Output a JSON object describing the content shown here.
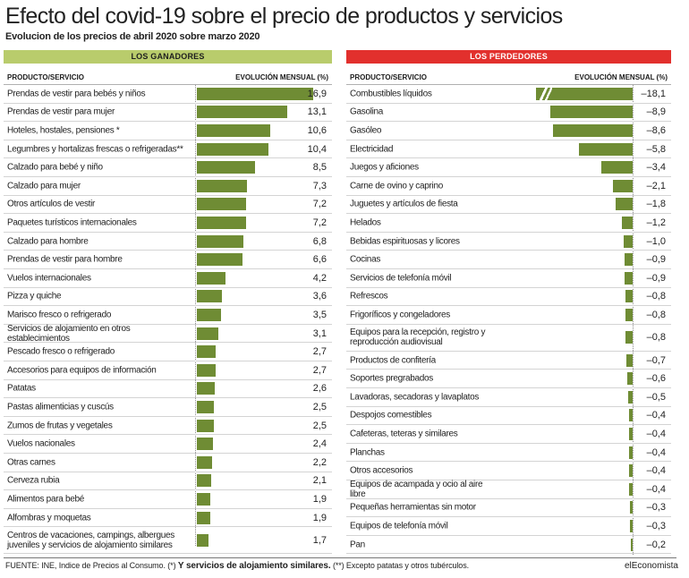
{
  "title": "Efecto del covid-19 sobre el precio de productos y servicios",
  "subtitle": "Evolucion de los precios de abril 2020 sobre marzo 2020",
  "footer": {
    "source": "FUENTE: INE, Indice de Precios al Consumo. (*)",
    "bold_note": "Y servicios de alojamiento similares.",
    "note2": "(**) Excepto patatas y otros tubérculos.",
    "brand": "elEconomista"
  },
  "colors": {
    "win_banner": "#b9cc6c",
    "lose_banner": "#e2302d",
    "bar": "#6f8c34"
  },
  "chart_data": [
    {
      "type": "bar",
      "title": "LOS GANADORES",
      "xlabel": "PRODUCTO/SERVICIO",
      "ylabel": "EVOLUCIÓN MENSUAL (%)",
      "categories": [
        "Prendas de vestir para bebés y niños",
        "Prendas de vestir para mujer",
        "Hoteles, hostales, pensiones *",
        "Legumbres y hortalizas frescas o refrigeradas**",
        "Calzado para bebé y niño",
        "Calzado para mujer",
        "Otros artículos de vestir",
        "Paquetes turísticos internacionales",
        "Calzado para hombre",
        "Prendas de vestir para hombre",
        "Vuelos internacionales",
        "Pizza y quiche",
        "Marisco fresco o refrigerado",
        "Servicios de alojamiento en otros establecimientos",
        "Pescado fresco o refrigerado",
        "Accesorios para equipos de información",
        "Patatas",
        "Pastas alimenticias y cuscús",
        "Zumos de frutas y vegetales",
        "Vuelos nacionales",
        "Otras carnes",
        "Cerveza rubia",
        "Alimentos para bebé",
        "Alfombras y moquetas",
        "Centros de vacaciones, campings, albergues juveniles y servicios de alojamiento similares"
      ],
      "labels": [
        "16,9",
        "13,1",
        "10,6",
        "10,4",
        "8,5",
        "7,3",
        "7,2",
        "7,2",
        "6,8",
        "6,6",
        "4,2",
        "3,6",
        "3,5",
        "3,1",
        "2,7",
        "2,7",
        "2,6",
        "2,5",
        "2,5",
        "2,4",
        "2,2",
        "2,1",
        "1,9",
        "1,9",
        "1,7"
      ],
      "values": [
        16.9,
        13.1,
        10.6,
        10.4,
        8.5,
        7.3,
        7.2,
        7.2,
        6.8,
        6.6,
        4.2,
        3.6,
        3.5,
        3.1,
        2.7,
        2.7,
        2.6,
        2.5,
        2.5,
        2.4,
        2.2,
        2.1,
        1.9,
        1.9,
        1.7
      ]
    },
    {
      "type": "bar",
      "title": "LOS PERDEDORES",
      "xlabel": "PRODUCTO/SERVICIO",
      "ylabel": "EVOLUCIÓN MENSUAL (%)",
      "categories": [
        "Combustibles líquidos",
        "Gasolina",
        "Gasóleo",
        "Electricidad",
        "Juegos y aficiones",
        "Carne de ovino y caprino",
        "Juguetes y artículos de fiesta",
        "Helados",
        "Bebidas espirituosas y licores",
        "Cocinas",
        "Servicios de telefonía móvil",
        "Refrescos",
        "Frigoríficos y congeladores",
        "Equipos para la recepción, registro y reproducción audiovisual",
        "Productos de confitería",
        "Soportes pregrabados",
        "Lavadoras, secadoras y lavaplatos",
        "Despojos comestibles",
        "Cafeteras, teteras y similares",
        "Planchas",
        "Otros accesorios",
        "Equipos de acampada y ocio al aire libre",
        "Pequeñas herramientas sin motor",
        "Equipos de telefonía móvil",
        "Pan"
      ],
      "labels": [
        "–18,1",
        "–8,9",
        "–8,6",
        "–5,8",
        "–3,4",
        "–2,1",
        "–1,8",
        "–1,2",
        "–1,0",
        "–0,9",
        "–0,9",
        "–0,8",
        "–0,8",
        "–0,8",
        "–0,7",
        "–0,6",
        "–0,5",
        "–0,4",
        "–0,4",
        "–0,4",
        "–0,4",
        "–0,4",
        "–0,3",
        "–0,3",
        "–0,2"
      ],
      "values": [
        -18.1,
        -8.9,
        -8.6,
        -5.8,
        -3.4,
        -2.1,
        -1.8,
        -1.2,
        -1.0,
        -0.9,
        -0.9,
        -0.8,
        -0.8,
        -0.8,
        -0.7,
        -0.6,
        -0.5,
        -0.4,
        -0.4,
        -0.4,
        -0.4,
        -0.4,
        -0.3,
        -0.3,
        -0.2
      ]
    }
  ]
}
